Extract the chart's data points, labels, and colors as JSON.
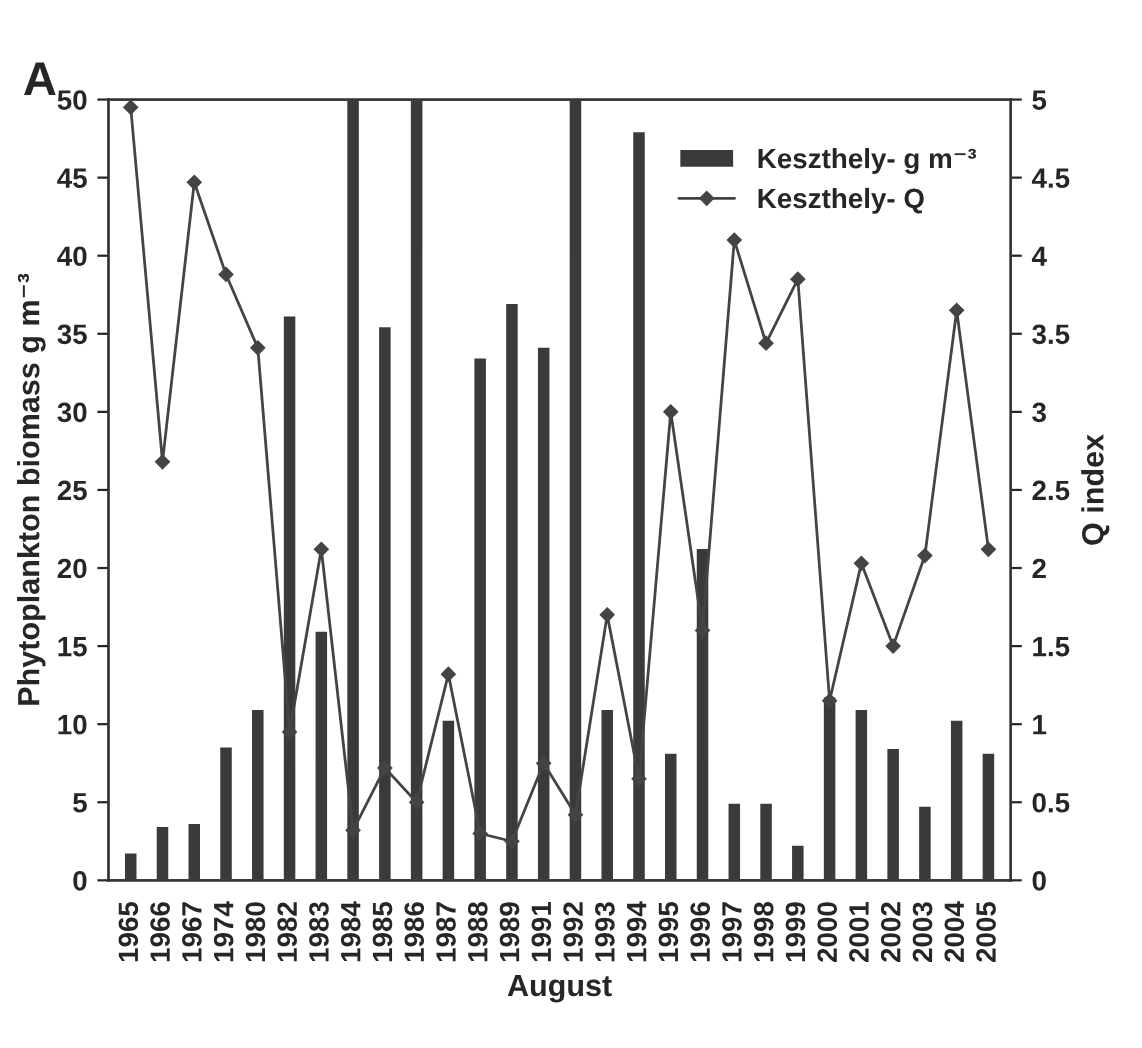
{
  "chart_data": {
    "type": "bar",
    "xlabel": "August",
    "ylabel": "Phytoplankton biomass g m⁻³",
    "y2label": "Q index",
    "annotations": [
      "A"
    ],
    "categories": [
      "1965",
      "1966",
      "1967",
      "1974",
      "1980",
      "1982",
      "1983",
      "1984",
      "1985",
      "1986",
      "1987",
      "1988",
      "1989",
      "1991",
      "1992",
      "1993",
      "1994",
      "1995",
      "1996",
      "1997",
      "1998",
      "1999",
      "2000",
      "2001",
      "2002",
      "2003",
      "2004",
      "2005"
    ],
    "series": [
      {
        "name": "Keszthely- g m⁻³",
        "color": "#3a3a3a",
        "values": [
          1.8,
          3.5,
          3.7,
          8.6,
          11,
          36.2,
          16,
          50,
          35.5,
          50,
          10.3,
          33.5,
          37,
          34.2,
          50,
          11,
          48,
          8.2,
          21.3,
          5,
          5,
          2.3,
          11.8,
          11,
          8.5,
          4.8,
          10.3,
          8.2
        ]
      },
      {
        "name": "Keszthely- Q",
        "type": "line",
        "axis": "y2",
        "color": "#444444",
        "marker": "diamond",
        "values": [
          4.95,
          2.68,
          4.47,
          3.88,
          3.41,
          0.95,
          2.12,
          0.32,
          0.72,
          0.5,
          1.32,
          0.3,
          0.25,
          0.75,
          0.42,
          1.7,
          0.65,
          3.0,
          1.6,
          4.1,
          3.44,
          3.85,
          1.15,
          2.03,
          1.5,
          2.08,
          3.65,
          2.12
        ]
      }
    ],
    "ylim": [
      0,
      50
    ],
    "yticks": [
      0,
      5,
      10,
      15,
      20,
      25,
      30,
      35,
      40,
      45,
      50
    ],
    "y2lim": [
      0,
      5
    ],
    "y2ticks": [
      0,
      0.5,
      1,
      1.5,
      2,
      2.5,
      3,
      3.5,
      4,
      4.5,
      5
    ],
    "grid": false,
    "legend": "top right"
  }
}
